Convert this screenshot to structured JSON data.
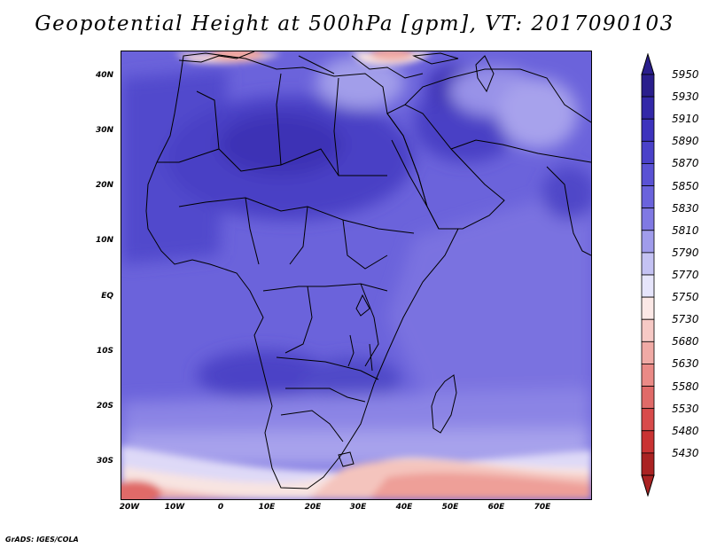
{
  "title": "Geopotential Height at 500hPa [gpm], VT: 2017090103",
  "credit": "GrADS: IGES/COLA",
  "map": {
    "lon_range": [
      -25,
      80
    ],
    "lat_range": [
      -37,
      46
    ],
    "lat_ticks": [
      "40N",
      "30N",
      "20N",
      "10N",
      "EQ",
      "10S",
      "20S",
      "30S"
    ],
    "lat_tick_values": [
      40,
      30,
      20,
      10,
      0,
      -10,
      -20,
      -30
    ],
    "lon_ticks": [
      "20W",
      "10W",
      "0",
      "10E",
      "20E",
      "30E",
      "40E",
      "50E",
      "60E",
      "70E"
    ],
    "lon_tick_values": [
      -20,
      -10,
      0,
      10,
      20,
      30,
      40,
      50,
      60,
      70
    ]
  },
  "colorbar": {
    "levels": [
      "5950",
      "5930",
      "5910",
      "5890",
      "5870",
      "5850",
      "5830",
      "5810",
      "5790",
      "5770",
      "5750",
      "5730",
      "5680",
      "5630",
      "5580",
      "5530",
      "5480",
      "5430"
    ],
    "colors": [
      "#2a1e8c",
      "#3328a8",
      "#3d33bd",
      "#4a41c9",
      "#5a52d4",
      "#6a63dc",
      "#8079e3",
      "#a09ceb",
      "#c4c2f3",
      "#e6e5fb",
      "#fbe8e6",
      "#f6c9c5",
      "#f0aaa5",
      "#ea8a86",
      "#e06a68",
      "#d84b4b",
      "#c93333",
      "#aa2222"
    ],
    "top_arrow_color": "#2a1e8c",
    "bottom_arrow_color": "#aa2222"
  }
}
